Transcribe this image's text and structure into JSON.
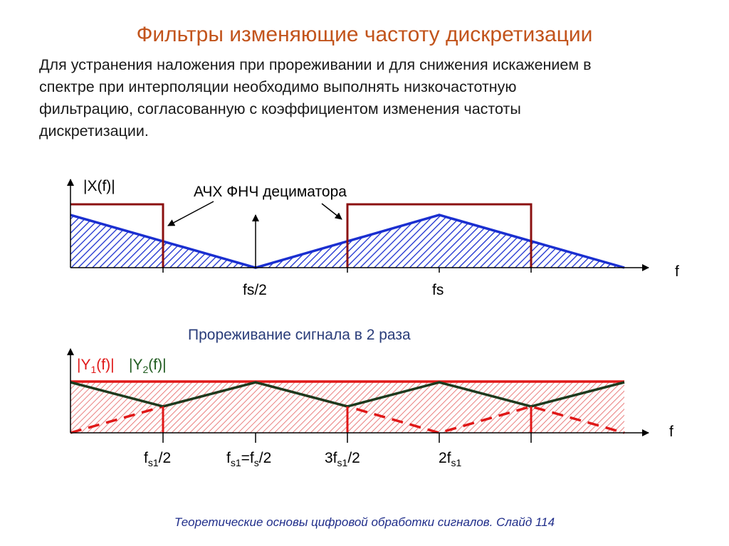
{
  "title": "Фильтры изменяющие частоту дискретизации",
  "paragraph": [
    "Для устранения наложения при прореживании и для снижения искажением в",
    "спектре при интерполяции необходимо выполнять низкочастотную",
    "фильтрацию, согласованную с коэффициентом изменения частоты",
    "дискретизации."
  ],
  "top_plot": {
    "y_label": "|X(f)|",
    "x_axis_label": "f",
    "filter_label": "АЧХ ФНЧ дециматора",
    "tick_fs2": "fs/2",
    "tick_fs": "fs"
  },
  "middle_caption": "Прореживание сигнала в 2 раза",
  "bottom_plot": {
    "y1_main": "|Y",
    "y1_sub": "1",
    "y1_tail": "(f)|",
    "y2_main": "|Y",
    "y2_sub": "2",
    "y2_tail": "(f)|",
    "x_axis_label": "f",
    "ticks": {
      "t1_main": "f",
      "t1_sub": "s1",
      "t1_tail": "/2",
      "t2_main": "f",
      "t2_sub": "s1",
      "t2_mid": "=f",
      "t2_sub2": "s",
      "t2_tail": "/2",
      "t3_main": "3f",
      "t3_sub": "s1",
      "t3_tail": "/2",
      "t4_main": "2f",
      "t4_sub": "s1"
    }
  },
  "footer": "Теоретические основы цифровой обработки сигналов.  Слайд  114",
  "colors": {
    "title": "#c2541c",
    "spectrum_blue": "#1a2fd0",
    "filter_darkred": "#8b1010",
    "red": "#e01818",
    "dark_green": "#1e3a1e",
    "footer": "#1f2d8a"
  }
}
